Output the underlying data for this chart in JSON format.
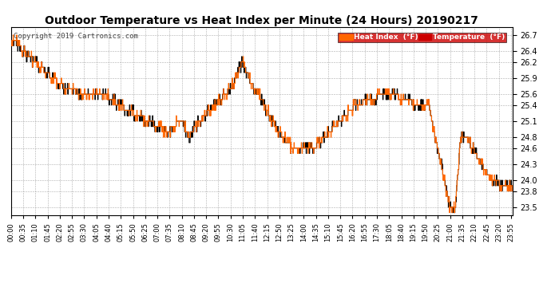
{
  "title": "Outdoor Temperature vs Heat Index per Minute (24 Hours) 20190217",
  "copyright": "Copyright 2019 Cartronics.com",
  "ylim": [
    23.35,
    26.85
  ],
  "yticks": [
    23.5,
    23.8,
    24.0,
    24.3,
    24.6,
    24.8,
    25.1,
    25.4,
    25.6,
    25.9,
    26.2,
    26.4,
    26.7
  ],
  "heat_index_color": "#ff6600",
  "temp_color": "#000000",
  "background_color": "#ffffff",
  "grid_color": "#999999",
  "legend_heat_bg": "#ff6600",
  "legend_temp_bg": "#cc0000",
  "title_fontsize": 10,
  "copyright_fontsize": 6.5,
  "tick_fontsize": 6,
  "ytick_fontsize": 7,
  "num_minutes": 1440,
  "xtick_interval": 35,
  "figwidth": 6.9,
  "figheight": 3.75,
  "dpi": 100
}
